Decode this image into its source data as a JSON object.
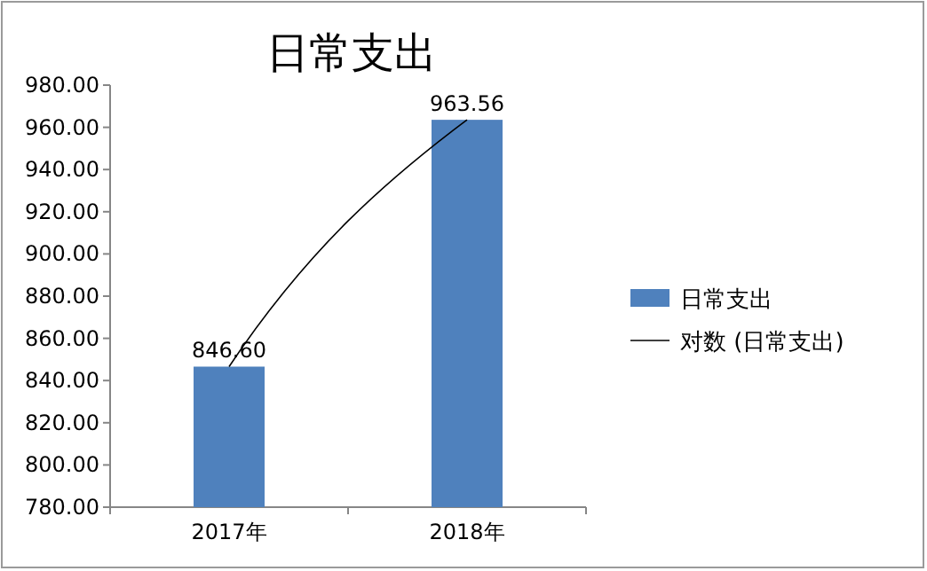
{
  "chart_data": {
    "type": "bar",
    "title": "日常支出",
    "categories": [
      "2017年",
      "2018年"
    ],
    "series": [
      {
        "name": "日常支出",
        "color": "#4f81bd",
        "values": [
          846.6,
          963.56
        ],
        "value_labels": [
          "846.60",
          "963.56"
        ]
      },
      {
        "name": "对数 (日常支出)",
        "type": "line",
        "color": "#000000",
        "values": [
          846.6,
          963.6
        ]
      }
    ],
    "ylim": [
      780,
      980
    ],
    "yticks": [
      {
        "value": 780,
        "label": "780.00"
      },
      {
        "value": 800,
        "label": "800.00"
      },
      {
        "value": 820,
        "label": "820.00"
      },
      {
        "value": 840,
        "label": "840.00"
      },
      {
        "value": 860,
        "label": "860.00"
      },
      {
        "value": 880,
        "label": "880.00"
      },
      {
        "value": 900,
        "label": "900.00"
      },
      {
        "value": 920,
        "label": "920.00"
      },
      {
        "value": 940,
        "label": "940.00"
      },
      {
        "value": 960,
        "label": "960.00"
      },
      {
        "value": 980,
        "label": "980.00"
      }
    ],
    "grid": false,
    "legend": "right"
  }
}
